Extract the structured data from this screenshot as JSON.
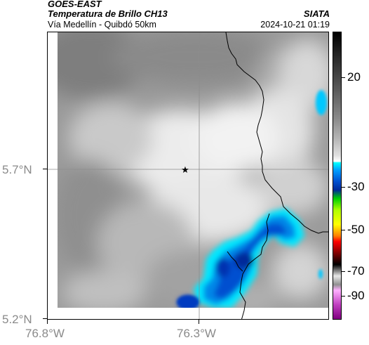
{
  "header": {
    "satellite": "GOES-EAST",
    "product": "Temperatura de Brillo CH13",
    "organization": "SIATA",
    "region": "Vía Medellín - Quibdó 50km",
    "datetime": "2024-10-21 01:19"
  },
  "axes": {
    "lat_labels": [
      "5.7°N",
      "5.2°N"
    ],
    "lon_labels": [
      "76.8°W",
      "76.3°W"
    ]
  },
  "colorbar": {
    "labels": [
      "20",
      "-30",
      "-50",
      "-70",
      "-90"
    ]
  },
  "marker": {
    "symbol": "★"
  },
  "colors": {
    "cold_cloud": "#0050d0",
    "coldest_cloud": "#002a9a",
    "cyan_edge": "#00ffff",
    "background_gray": "#9a9a9a",
    "border_line": "#000000",
    "grid_line": "#8c8c8c"
  }
}
